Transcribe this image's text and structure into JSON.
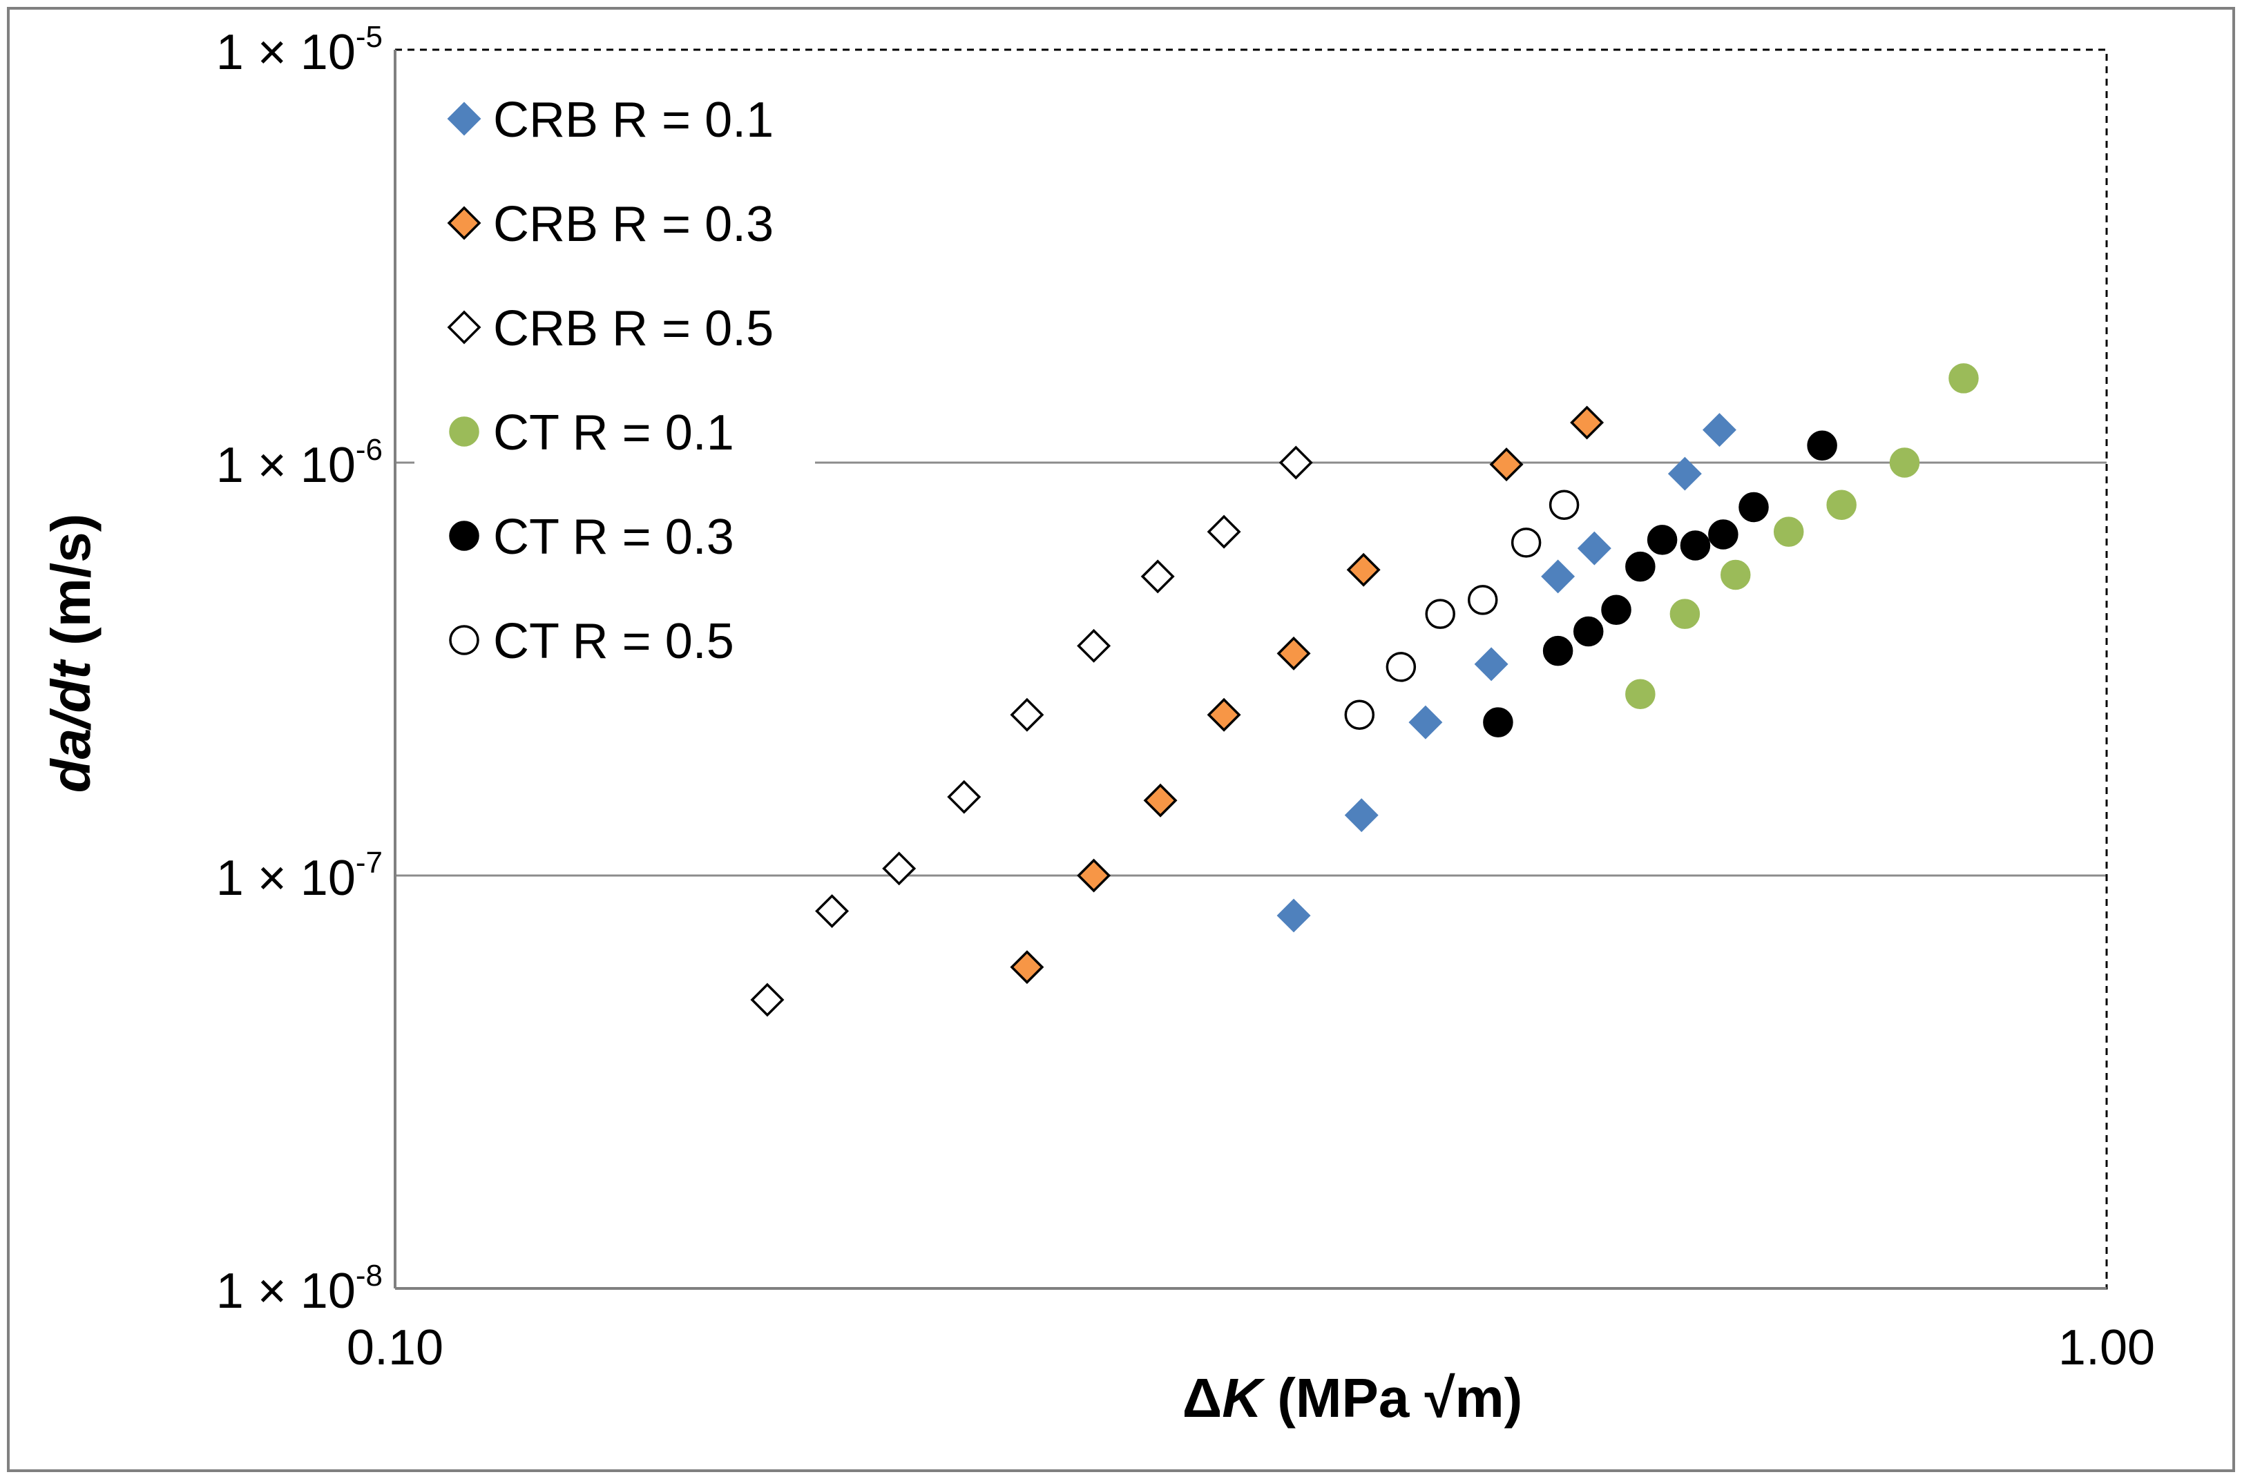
{
  "chart_data": {
    "type": "scatter",
    "title": "",
    "xlabel": {
      "symbol": "Δ",
      "var": "K",
      "units": " (MPa √m)"
    },
    "ylabel": {
      "var": "da/dt",
      "units": " (m/s)"
    },
    "xscale": "log",
    "yscale": "log",
    "xlim": [
      0.1,
      1.0
    ],
    "ylim": [
      1e-08,
      1e-05
    ],
    "grid": "horizontal major",
    "legend_position": "top-left",
    "x_tick_labels": [
      "0.10",
      "1.00"
    ],
    "y_tick_labels": [
      {
        "mantissa": "1 × 10",
        "exp": "-8"
      },
      {
        "mantissa": "1 × 10",
        "exp": "-7"
      },
      {
        "mantissa": "1 × 10",
        "exp": "-6"
      },
      {
        "mantissa": "1 × 10",
        "exp": "-5"
      }
    ],
    "series": [
      {
        "name": "CRB R = 0.1",
        "marker": "diamond",
        "fill": "#4F81BD",
        "stroke": "#4F81BD",
        "points": [
          [
            0.335,
            8e-08
          ],
          [
            0.367,
            1.4e-07
          ],
          [
            0.4,
            2.35e-07
          ],
          [
            0.437,
            3.25e-07
          ],
          [
            0.478,
            5.3e-07
          ],
          [
            0.502,
            6.2e-07
          ],
          [
            0.567,
            9.4e-07
          ],
          [
            0.594,
            1.2e-06
          ]
        ]
      },
      {
        "name": "CRB R = 0.3",
        "marker": "diamond",
        "fill": "#F79646",
        "stroke": "#000000",
        "points": [
          [
            0.234,
            6e-08
          ],
          [
            0.256,
            1e-07
          ],
          [
            0.28,
            1.52e-07
          ],
          [
            0.305,
            2.45e-07
          ],
          [
            0.335,
            3.45e-07
          ],
          [
            0.368,
            5.5e-07
          ],
          [
            0.446,
            9.9e-07
          ],
          [
            0.497,
            1.25e-06
          ]
        ]
      },
      {
        "name": "CRB R = 0.5",
        "marker": "diamond",
        "fill": "#FFFFFF",
        "stroke": "#000000",
        "points": [
          [
            0.165,
            5e-08
          ],
          [
            0.18,
            8.2e-08
          ],
          [
            0.197,
            1.04e-07
          ],
          [
            0.215,
            1.55e-07
          ],
          [
            0.234,
            2.45e-07
          ],
          [
            0.256,
            3.6e-07
          ],
          [
            0.279,
            5.3e-07
          ],
          [
            0.305,
            6.8e-07
          ],
          [
            0.336,
            1e-06
          ]
        ]
      },
      {
        "name": "CT R = 0.1",
        "marker": "circle",
        "fill": "#9BBB59",
        "stroke": "#9BBB59",
        "points": [
          [
            0.534,
            2.75e-07
          ],
          [
            0.567,
            4.3e-07
          ],
          [
            0.607,
            5.35e-07
          ],
          [
            0.652,
            6.8e-07
          ],
          [
            0.7,
            7.9e-07
          ],
          [
            0.762,
            1e-06
          ],
          [
            0.825,
            1.6e-06
          ]
        ]
      },
      {
        "name": "CT R = 0.3",
        "marker": "circle",
        "fill": "#000000",
        "stroke": "#000000",
        "points": [
          [
            0.441,
            2.35e-07
          ],
          [
            0.478,
            3.5e-07
          ],
          [
            0.498,
            3.9e-07
          ],
          [
            0.517,
            4.4e-07
          ],
          [
            0.534,
            5.6e-07
          ],
          [
            0.55,
            6.5e-07
          ],
          [
            0.575,
            6.3e-07
          ],
          [
            0.597,
            6.7e-07
          ],
          [
            0.622,
            7.8e-07
          ],
          [
            0.682,
            1.1e-06
          ]
        ]
      },
      {
        "name": "CT R = 0.5",
        "marker": "circle",
        "fill": "#FFFFFF",
        "stroke": "#000000",
        "points": [
          [
            0.366,
            2.45e-07
          ],
          [
            0.387,
            3.2e-07
          ],
          [
            0.408,
            4.3e-07
          ],
          [
            0.432,
            4.65e-07
          ],
          [
            0.458,
            6.4e-07
          ],
          [
            0.482,
            7.9e-07
          ]
        ]
      }
    ]
  }
}
